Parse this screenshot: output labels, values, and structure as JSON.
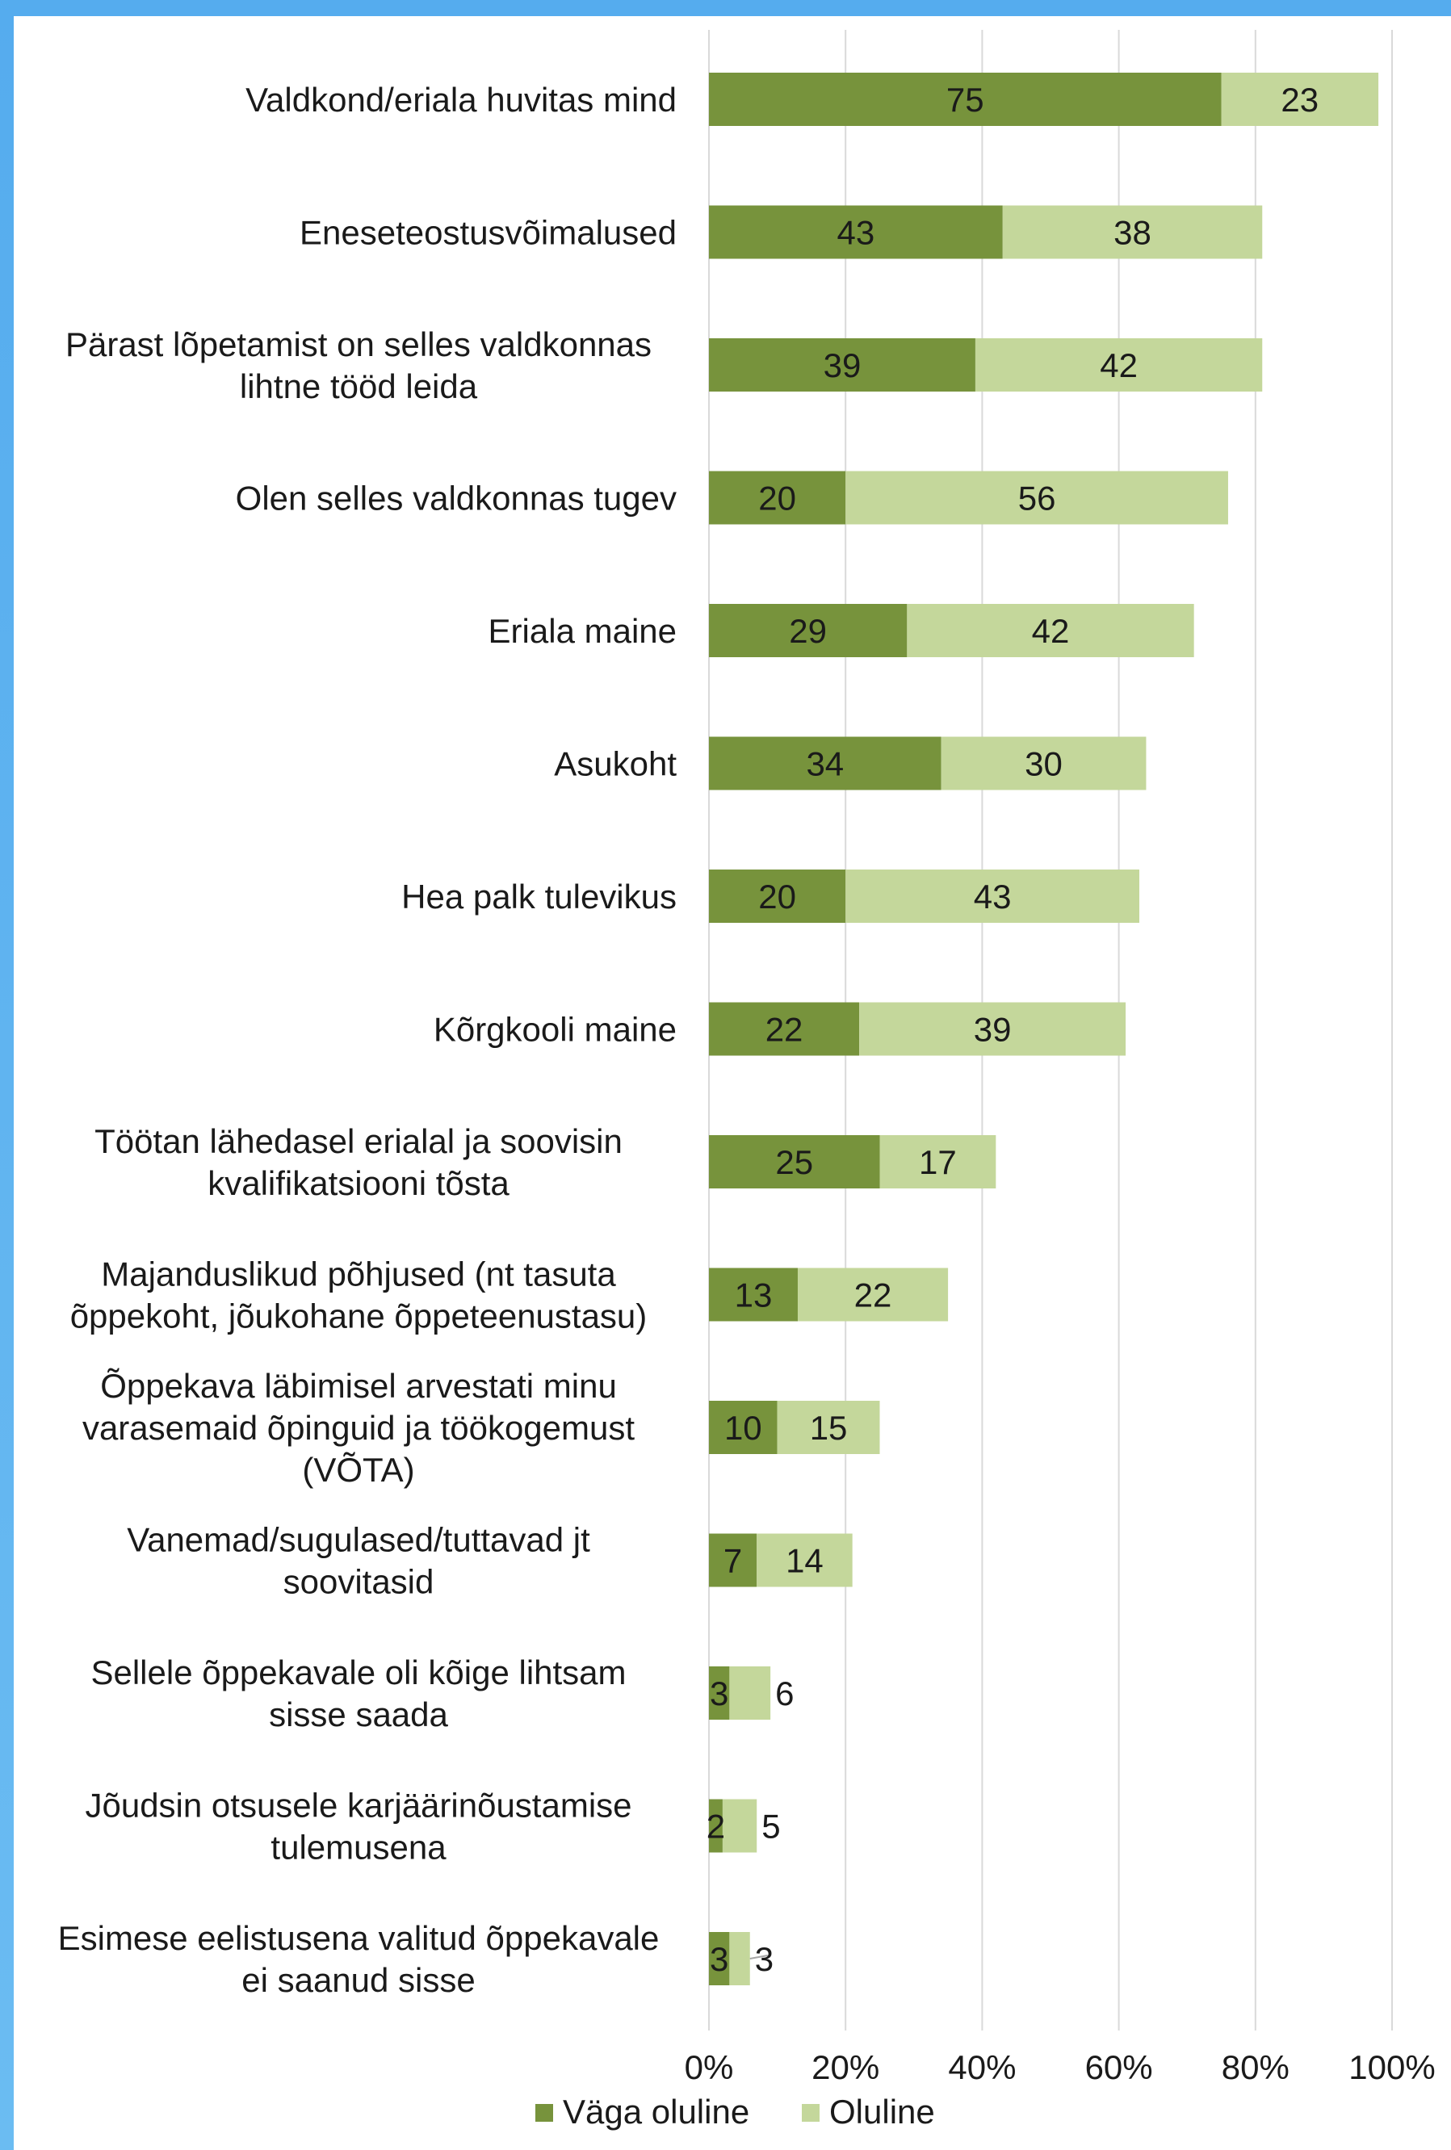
{
  "chart_data": {
    "type": "bar",
    "orientation": "horizontal",
    "stacked": true,
    "categories": [
      "Valdkond/eriala huvitas mind",
      "Eneseteostusvõimalused",
      "Pärast lõpetamist on selles valdkonnas lihtne tööd leida",
      "Olen selles valdkonnas tugev",
      "Eriala maine",
      "Asukoht",
      "Hea palk tulevikus",
      "Kõrgkooli maine",
      "Töötan lähedasel erialal ja soovisin kvalifikatsiooni tõsta",
      "Majanduslikud põhjused (nt tasuta õppekoht, jõukohane õppeteenustasu)",
      "Õppekava läbimisel arvestati minu varasemaid õpinguid ja töökogemust (VÕTA)",
      "Vanemad/sugulased/tuttavad jt soovitasid",
      "Sellele õppekavale oli kõige lihtsam sisse saada",
      "Jõudsin otsusele karjäärinõustamise tulemusena",
      "Esimese eelistusena valitud õppekavale ei saanud sisse"
    ],
    "category_lines": [
      [
        "Valdkond/eriala huvitas mind"
      ],
      [
        "Eneseteostusvõimalused"
      ],
      [
        "Pärast lõpetamist on selles valdkonnas",
        "lihtne tööd leida"
      ],
      [
        "Olen selles valdkonnas tugev"
      ],
      [
        "Eriala maine"
      ],
      [
        "Asukoht"
      ],
      [
        "Hea palk tulevikus"
      ],
      [
        "Kõrgkooli maine"
      ],
      [
        "Töötan lähedasel erialal ja soovisin",
        "kvalifikatsiooni tõsta"
      ],
      [
        "Majanduslikud põhjused (nt tasuta",
        "õppekoht, jõukohane õppeteenustasu)"
      ],
      [
        "Õppekava läbimisel arvestati minu",
        "varasemaid õpinguid ja töökogemust",
        "(VÕTA)"
      ],
      [
        "Vanemad/sugulased/tuttavad jt",
        "soovitasid"
      ],
      [
        "Sellele õppekavale oli kõige lihtsam",
        "sisse saada"
      ],
      [
        "Jõudsin otsusele karjäärinõustamise",
        "tulemusena"
      ],
      [
        "Esimese eelistusena valitud õppekavale",
        "ei saanud sisse"
      ]
    ],
    "series": [
      {
        "name": "Väga oluline",
        "color": "#77933c",
        "values": [
          75,
          43,
          39,
          20,
          29,
          34,
          20,
          22,
          25,
          13,
          10,
          7,
          3,
          2,
          3
        ]
      },
      {
        "name": "Oluline",
        "color": "#c4d79b",
        "values": [
          23,
          38,
          42,
          56,
          42,
          30,
          43,
          39,
          17,
          22,
          15,
          14,
          6,
          5,
          3
        ]
      }
    ],
    "xlim": [
      0,
      100
    ],
    "xticks": [
      "0%",
      "20%",
      "40%",
      "60%",
      "80%",
      "100%"
    ],
    "grid": true,
    "legend_position": "bottom"
  }
}
